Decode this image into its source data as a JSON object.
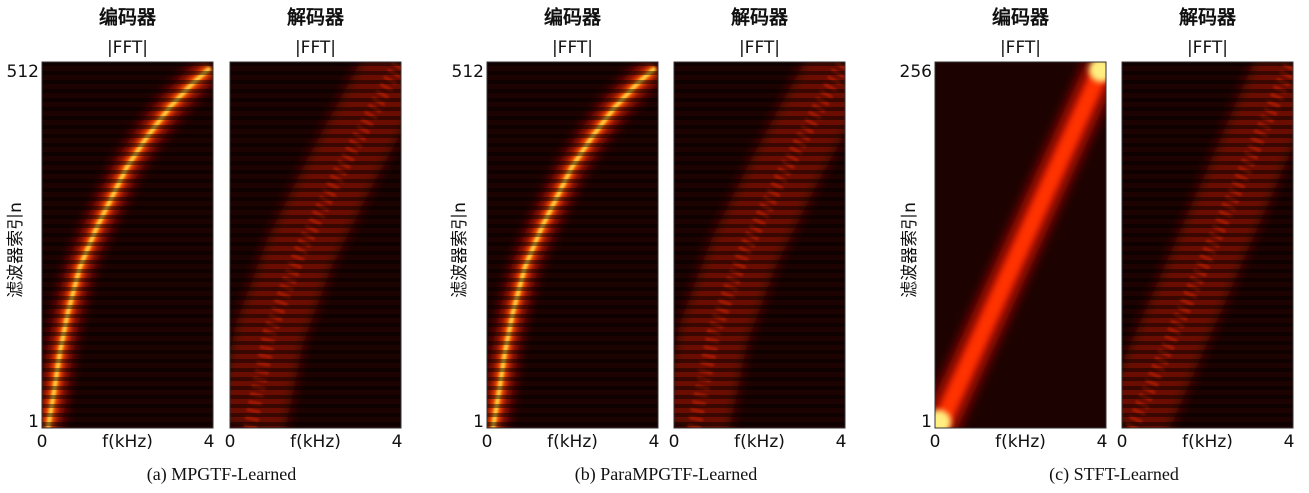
{
  "figure": {
    "panels": [
      {
        "encoder_title": "编码器",
        "decoder_title": "解码器",
        "encoder_subtitle": "|FFT|",
        "decoder_subtitle": "|FFT|",
        "ylabel": "滤波器索引n",
        "y_top": "512",
        "y_bottom": "1",
        "enc_x_left": "0",
        "enc_x_label": "f(kHz)",
        "enc_x_right": "4",
        "dec_x_left": "0",
        "dec_x_label": "f(kHz)",
        "dec_x_right": "4",
        "caption": "(a)  MPGTF-Learned"
      },
      {
        "encoder_title": "编码器",
        "decoder_title": "解码器",
        "encoder_subtitle": "|FFT|",
        "decoder_subtitle": "|FFT|",
        "ylabel": "滤波器索引n",
        "y_top": "512",
        "y_bottom": "1",
        "enc_x_left": "0",
        "enc_x_label": "f(kHz)",
        "enc_x_right": "4",
        "dec_x_left": "0",
        "dec_x_label": "f(kHz)",
        "dec_x_right": "4",
        "caption": "(b)  ParaMPGTF-Learned"
      },
      {
        "encoder_title": "编码器",
        "decoder_title": "解码器",
        "encoder_subtitle": "|FFT|",
        "decoder_subtitle": "|FFT|",
        "ylabel": "滤波器索引n",
        "y_top": "256",
        "y_bottom": "1",
        "enc_x_left": "0",
        "enc_x_label": "f(kHz)",
        "enc_x_right": "4",
        "dec_x_left": "0",
        "dec_x_label": "f(kHz)",
        "dec_x_right": "4",
        "caption": "(c)  STFT-Learned"
      }
    ]
  }
}
